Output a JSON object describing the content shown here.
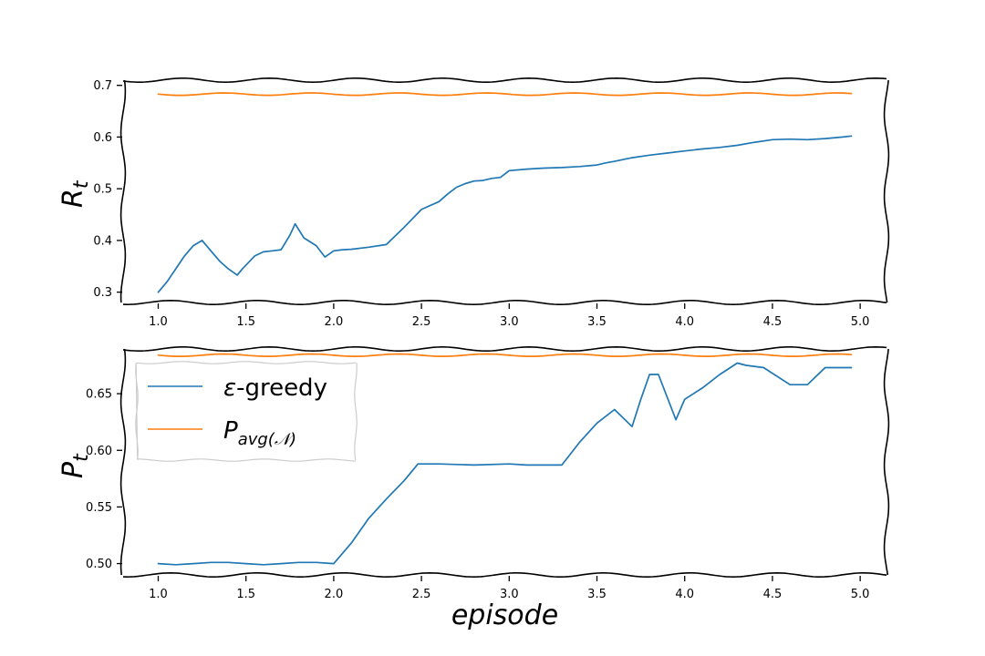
{
  "chart_data": [
    {
      "type": "line",
      "ylabel_main": "R",
      "ylabel_sub": "t",
      "xlim": [
        0.8,
        5.15
      ],
      "ylim": [
        0.28,
        0.71
      ],
      "xticks": [
        1.0,
        1.5,
        2.0,
        2.5,
        3.0,
        3.5,
        4.0,
        4.5,
        5.0
      ],
      "xtick_labels": [
        "1.0",
        "1.5",
        "2.0",
        "2.5",
        "3.0",
        "3.5",
        "4.0",
        "4.5",
        "5.0"
      ],
      "yticks": [
        0.3,
        0.4,
        0.5,
        0.6,
        0.7
      ],
      "ytick_labels": [
        "0.3",
        "0.4",
        "0.5",
        "0.6",
        "0.7"
      ],
      "series": [
        {
          "key": "greedy",
          "color": "#1f77b4",
          "x": [
            1.0,
            1.05,
            1.1,
            1.15,
            1.2,
            1.25,
            1.3,
            1.35,
            1.4,
            1.45,
            1.48,
            1.55,
            1.6,
            1.65,
            1.7,
            1.75,
            1.78,
            1.83,
            1.9,
            1.95,
            2.0,
            2.05,
            2.1,
            2.2,
            2.3,
            2.4,
            2.5,
            2.6,
            2.65,
            2.7,
            2.75,
            2.8,
            2.85,
            2.9,
            2.95,
            3.0,
            3.1,
            3.2,
            3.3,
            3.4,
            3.5,
            3.55,
            3.6,
            3.7,
            3.8,
            3.9,
            4.0,
            4.1,
            4.2,
            4.3,
            4.4,
            4.5,
            4.6,
            4.7,
            4.8,
            4.9,
            4.95
          ],
          "y": [
            0.3,
            0.32,
            0.345,
            0.37,
            0.39,
            0.4,
            0.38,
            0.36,
            0.345,
            0.333,
            0.345,
            0.37,
            0.378,
            0.38,
            0.382,
            0.41,
            0.432,
            0.405,
            0.39,
            0.368,
            0.38,
            0.382,
            0.383,
            0.387,
            0.392,
            0.425,
            0.46,
            0.475,
            0.49,
            0.503,
            0.51,
            0.515,
            0.516,
            0.52,
            0.522,
            0.535,
            0.538,
            0.54,
            0.541,
            0.543,
            0.546,
            0.55,
            0.553,
            0.56,
            0.565,
            0.569,
            0.573,
            0.577,
            0.58,
            0.584,
            0.59,
            0.595,
            0.596,
            0.595,
            0.597,
            0.6,
            0.602
          ]
        },
        {
          "key": "pavg",
          "color": "#ff7f0e",
          "x": [
            1.0,
            4.95
          ],
          "y": [
            0.683,
            0.683
          ]
        }
      ]
    },
    {
      "type": "line",
      "ylabel_main": "P",
      "ylabel_sub": "t",
      "xlabel": "episode",
      "xlim": [
        0.8,
        5.15
      ],
      "ylim": [
        0.49,
        0.6895
      ],
      "xticks": [
        1.0,
        1.5,
        2.0,
        2.5,
        3.0,
        3.5,
        4.0,
        4.5,
        5.0
      ],
      "xtick_labels": [
        "1.0",
        "1.5",
        "2.0",
        "2.5",
        "3.0",
        "3.5",
        "4.0",
        "4.5",
        "5.0"
      ],
      "yticks": [
        0.5,
        0.55,
        0.6,
        0.65
      ],
      "ytick_labels": [
        "0.50",
        "0.55",
        "0.60",
        "0.65"
      ],
      "legend": {
        "placement": "upper-left",
        "entries": [
          {
            "key": "greedy",
            "color": "#1f77b4",
            "symbol": "ε",
            "label": "-greedy"
          },
          {
            "key": "pavg",
            "color": "#ff7f0e",
            "main": "P",
            "sub": "avg(𝒩)"
          }
        ]
      },
      "series": [
        {
          "key": "greedy",
          "color": "#1f77b4",
          "x": [
            1.0,
            1.1,
            1.2,
            1.3,
            1.4,
            1.5,
            1.6,
            1.7,
            1.8,
            1.9,
            2.0,
            2.1,
            2.2,
            2.3,
            2.4,
            2.48,
            2.6,
            2.8,
            3.0,
            3.1,
            3.2,
            3.3,
            3.4,
            3.5,
            3.6,
            3.7,
            3.75,
            3.8,
            3.85,
            3.95,
            4.0,
            4.1,
            4.2,
            4.3,
            4.35,
            4.45,
            4.6,
            4.7,
            4.8,
            4.9,
            4.95
          ],
          "y": [
            0.5,
            0.499,
            0.5,
            0.501,
            0.501,
            0.5,
            0.499,
            0.5,
            0.501,
            0.501,
            0.5,
            0.518,
            0.54,
            0.557,
            0.573,
            0.588,
            0.588,
            0.587,
            0.588,
            0.587,
            0.587,
            0.587,
            0.607,
            0.624,
            0.636,
            0.621,
            0.645,
            0.667,
            0.667,
            0.627,
            0.645,
            0.655,
            0.667,
            0.677,
            0.675,
            0.673,
            0.658,
            0.658,
            0.673,
            0.673,
            0.673
          ]
        },
        {
          "key": "pavg",
          "color": "#ff7f0e",
          "x": [
            1.0,
            4.95
          ],
          "y": [
            0.684,
            0.684
          ]
        }
      ]
    }
  ]
}
